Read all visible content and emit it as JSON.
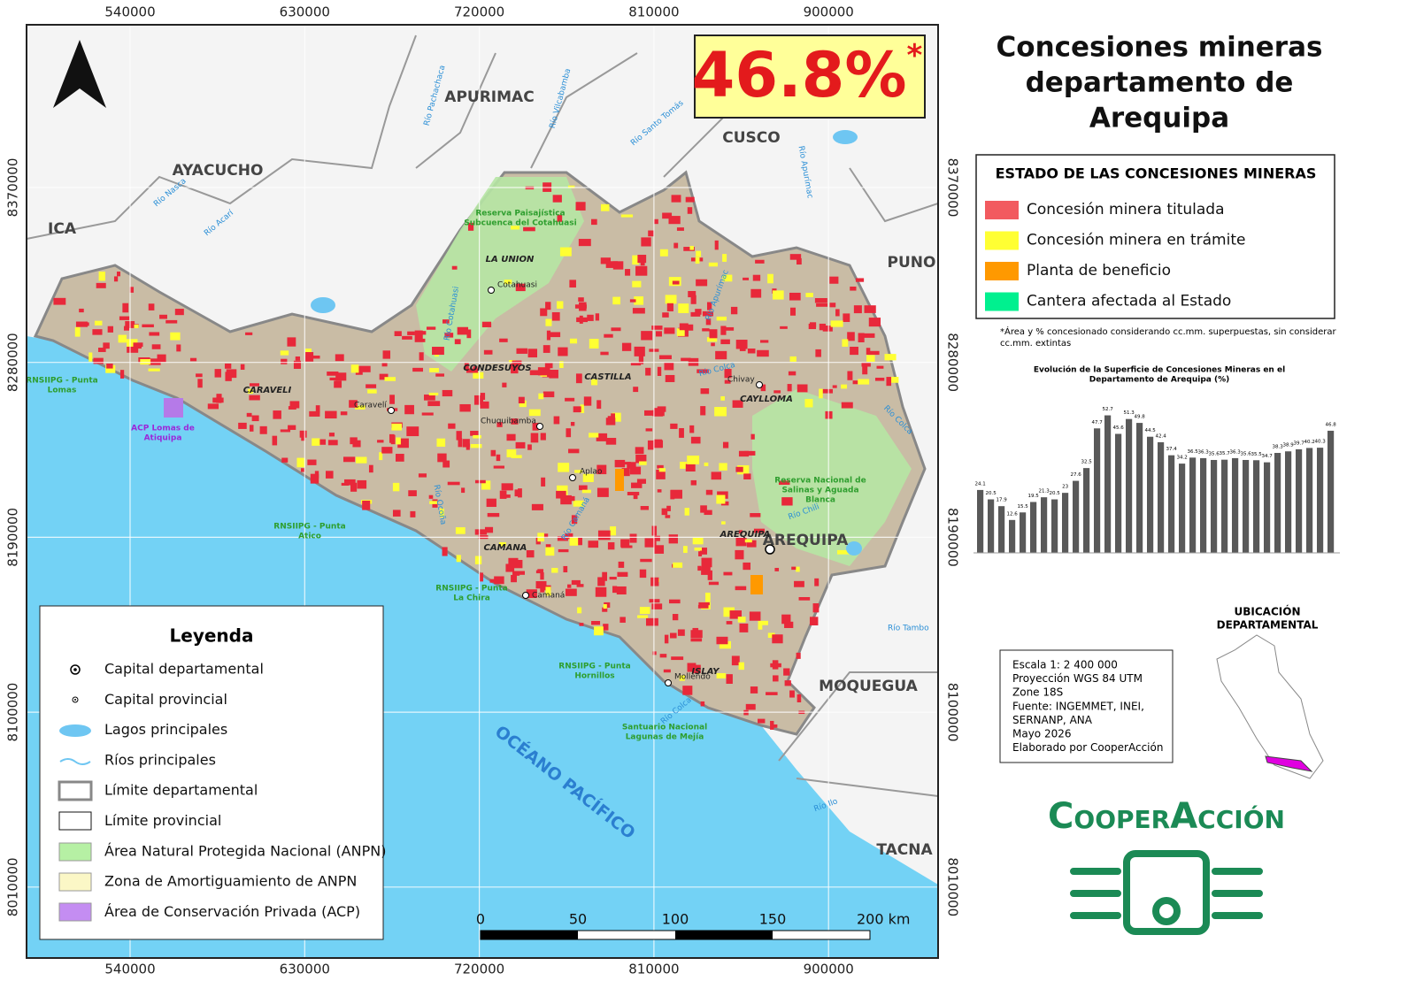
{
  "title": [
    "Concesiones mineras",
    "departamento de",
    "Arequipa"
  ],
  "headline": {
    "text": "46.8%",
    "mark": "*"
  },
  "grid": {
    "x": [
      540000,
      630000,
      720000,
      810000,
      900000
    ],
    "y": [
      8370000,
      8280000,
      8190000,
      8100000,
      8010000
    ]
  },
  "regions": [
    "APURIMAC",
    "AYACUCHO",
    "ICA",
    "CUSCO",
    "PUNO",
    "MOQUEGUA",
    "TACNA",
    "AREQUIPA"
  ],
  "ocean": "OCÉANO PACÍFICO",
  "provinces": [
    "LA UNION",
    "CONDESUYOS",
    "CASTILLA",
    "CAYLLOMA",
    "CARAVELI",
    "CAMANA",
    "AREQUIPA",
    "ISLAY"
  ],
  "towns": [
    "Cotahuasi",
    "Chuquibamba",
    "Aplao",
    "Caravelí",
    "Chivay",
    "Camaná",
    "Mollendo"
  ],
  "rivers": [
    "Río Nasca",
    "Río Acarí",
    "Río Pachachaca",
    "Río Vilcabamba",
    "Río Santo Tomás",
    "Río Apurímac",
    "Río Cotahuasi",
    "Río Ocoña",
    "Río Camaná",
    "Río Colca",
    "Río Apurímac",
    "Río Colca",
    "Río Chili",
    "Río Tambo",
    "Río Ilo",
    "Río Colca"
  ],
  "protected_areas": [
    [
      "Reserva Paisajística",
      "Subcuenca del Cotahuasi"
    ],
    [
      "Reserva Nacional de",
      "Salinas y Aguada",
      "Blanca"
    ],
    [
      "RNSIIPG - Punta",
      "Lomas"
    ],
    [
      "ACP Lomas de",
      "Atiquipa"
    ],
    [
      "RNSIIPG - Punta",
      "Atico"
    ],
    [
      "RNSIIPG - Punta",
      "La Chira"
    ],
    [
      "RNSIIPG - Punta",
      "Hornillos"
    ],
    [
      "Santuario Nacional",
      "Lagunas de Mejía"
    ]
  ],
  "status_legend": {
    "title": "ESTADO DE LAS CONCESIONES MINERAS",
    "items": [
      {
        "label": "Concesión minera titulada",
        "color": "#f25a5f"
      },
      {
        "label": "Concesión minera en trámite",
        "color": "#ffff33"
      },
      {
        "label": "Planta de beneficio",
        "color": "#ff9900"
      },
      {
        "label": "Cantera afectada al Estado",
        "color": "#00f08f"
      }
    ]
  },
  "note": [
    "*Área y % concesionado considerando cc.mm. superpuestas, sin considerar",
    "cc.mm. extintas"
  ],
  "trend_chart": {
    "type": "bar",
    "title": [
      "Evolución de la Superficie de Concesiones Mineras en el",
      "Departamento de Arequipa (%)"
    ],
    "color": "#595959",
    "values": [
      24.1,
      20.5,
      17.9,
      12.6,
      15.5,
      19.5,
      21.3,
      20.5,
      23.0,
      27.6,
      32.5,
      47.7,
      52.7,
      45.6,
      51.3,
      49.8,
      44.5,
      42.4,
      37.4,
      34.2,
      36.5,
      36.3,
      35.6,
      35.7,
      36.3,
      35.6,
      35.5,
      34.7,
      38.3,
      38.9,
      39.7,
      40.2,
      40.3,
      46.8
    ]
  },
  "legend": {
    "title": "Leyenda",
    "items": [
      "Capital departamental",
      "Capital provincial",
      "Lagos principales",
      "Ríos principales",
      "Límite departamental",
      "Límite provincial",
      "Área Natural Protegida Nacional (ANPN)",
      "Zona de Amortiguamiento de ANPN",
      "Área de Conservación Privada (ACP)"
    ]
  },
  "scale_bar": [
    "0",
    "50",
    "100",
    "150",
    "200 km"
  ],
  "info": [
    "Escala 1: 2 400 000",
    "Proyección WGS 84 UTM",
    "Zone 18S",
    "Fuente: INGEMMET, INEI,",
    "SERNANP, ANA",
    "Mayo 2026",
    "Elaborado por CooperAcción"
  ],
  "location": [
    "UBICACIÓN",
    "DEPARTAMENTAL"
  ],
  "logo": "CooperAcción"
}
